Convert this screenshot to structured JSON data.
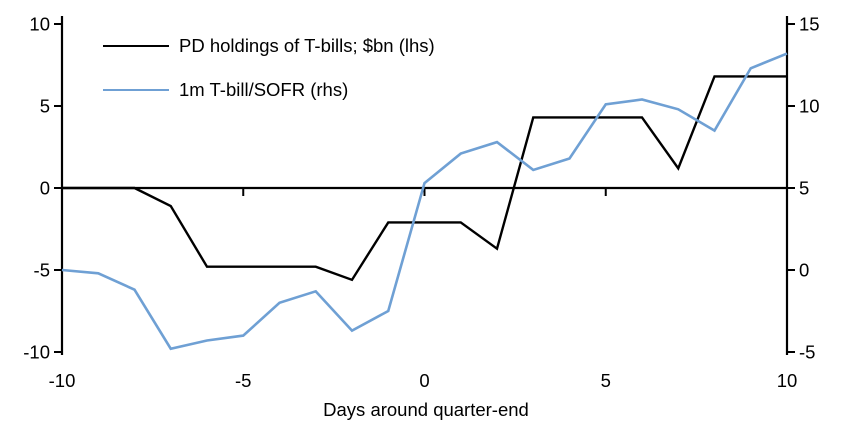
{
  "chart_data": {
    "type": "line",
    "xlabel": "Days around quarter-end",
    "grid": false,
    "legend_position": "top-left",
    "x": [
      -10,
      -9,
      -8,
      -7,
      -6,
      -5,
      -4,
      -3,
      -2,
      -1,
      0,
      1,
      2,
      3,
      4,
      5,
      6,
      7,
      8,
      9,
      10
    ],
    "series": [
      {
        "name": "PD holdings of T-bills; $bn (lhs)",
        "axis": "lhs",
        "color": "#000000",
        "values": [
          0,
          0,
          0,
          -1.1,
          -4.8,
          -4.8,
          -4.8,
          -4.8,
          -5.6,
          -2.1,
          -2.1,
          -2.1,
          -3.7,
          4.3,
          4.3,
          4.3,
          4.3,
          1.2,
          6.8,
          6.8,
          6.8
        ]
      },
      {
        "name": "1m T-bill/SOFR (rhs)",
        "axis": "rhs",
        "color": "#6fa0d4",
        "values": [
          0,
          -0.2,
          -1.2,
          -4.8,
          -4.3,
          -4.0,
          -2.0,
          -1.3,
          -3.7,
          -2.5,
          5.3,
          7.1,
          7.8,
          6.1,
          6.8,
          10.1,
          10.4,
          9.8,
          8.5,
          12.3,
          13.2
        ]
      }
    ],
    "axes": {
      "left": {
        "ticks": [
          10,
          5,
          0,
          -5,
          -10
        ],
        "min": -10,
        "max": 10
      },
      "right": {
        "ticks": [
          15,
          10,
          5,
          0,
          -5
        ],
        "min": -5,
        "max": 15
      },
      "x": {
        "ticks": [
          -10,
          -5,
          0,
          5,
          10
        ],
        "min": -10,
        "max": 10
      }
    }
  }
}
